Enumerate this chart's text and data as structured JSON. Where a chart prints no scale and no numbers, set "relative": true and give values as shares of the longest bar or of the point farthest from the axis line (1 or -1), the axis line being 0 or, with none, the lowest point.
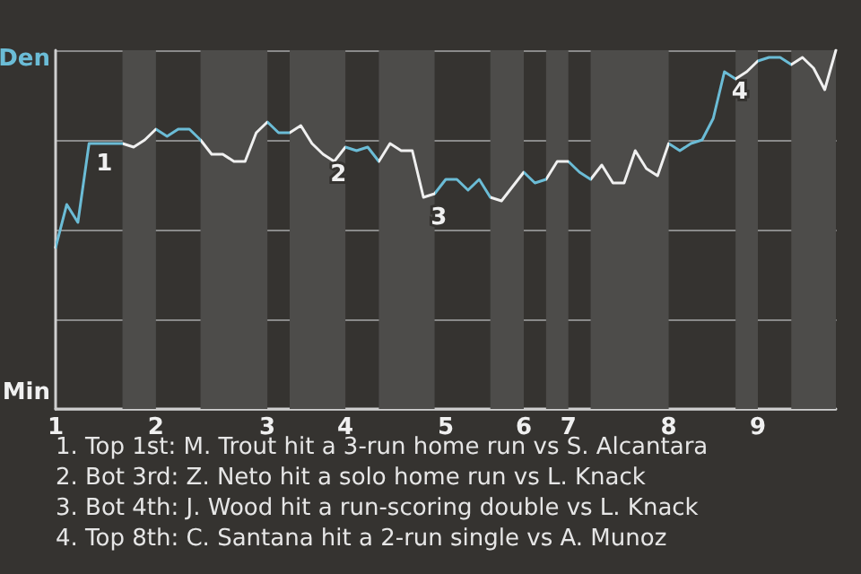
{
  "chart_data": {
    "type": "line",
    "relative": true,
    "categories": [
      "1",
      null,
      null,
      null,
      null,
      null,
      null,
      null,
      null,
      "2",
      null,
      null,
      null,
      null,
      null,
      null,
      null,
      null,
      null,
      "3",
      null,
      null,
      null,
      null,
      null,
      null,
      "4",
      null,
      null,
      null,
      null,
      null,
      null,
      null,
      null,
      "5",
      null,
      null,
      null,
      null,
      null,
      null,
      "6",
      null,
      null,
      null,
      "7",
      null,
      null,
      null,
      null,
      null,
      null,
      null,
      null,
      "8",
      null,
      null,
      null,
      null,
      null,
      null,
      null,
      "9",
      null,
      null,
      null,
      null,
      null,
      null,
      null
    ],
    "series": [
      {
        "color": "#f0f0f0",
        "values": [
          0.45,
          0.57,
          0.52,
          0.74,
          0.74,
          0.74,
          0.74,
          0.73,
          0.75,
          0.78,
          0.76,
          0.78,
          0.78,
          0.75,
          0.71,
          0.71,
          0.69,
          0.69,
          0.77,
          0.8,
          0.77,
          0.77,
          0.79,
          0.74,
          0.71,
          0.69,
          0.73,
          0.72,
          0.73,
          0.69,
          0.74,
          0.72,
          0.72,
          0.59,
          0.6,
          0.64,
          0.64,
          0.61,
          0.64,
          0.59,
          0.58,
          0.62,
          0.66,
          0.63,
          0.64,
          0.69,
          0.69,
          0.66,
          0.64,
          0.68,
          0.63,
          0.63,
          0.72,
          0.67,
          0.65,
          0.74,
          0.72,
          0.74,
          0.75,
          0.81,
          0.94,
          0.92,
          0.94,
          0.97,
          0.98,
          0.98,
          0.96,
          0.98,
          0.95,
          0.89,
          1.0
        ],
        "colors": [
          "#6bbcd6",
          "#6bbcd6",
          "#6bbcd6",
          "#6bbcd6",
          "#6bbcd6",
          "#6bbcd6",
          "#f0f0f0",
          "#f0f0f0",
          "#f0f0f0",
          "#6bbcd6",
          "#6bbcd6",
          "#6bbcd6",
          "#6bbcd6",
          "#f0f0f0",
          "#f0f0f0",
          "#f0f0f0",
          "#f0f0f0",
          "#f0f0f0",
          "#f0f0f0",
          "#6bbcd6",
          "#6bbcd6",
          "#f0f0f0",
          "#f0f0f0",
          "#f0f0f0",
          "#f0f0f0",
          "#f0f0f0",
          "#6bbcd6",
          "#6bbcd6",
          "#6bbcd6",
          "#f0f0f0",
          "#f0f0f0",
          "#f0f0f0",
          "#f0f0f0",
          "#f0f0f0",
          "#6bbcd6",
          "#6bbcd6",
          "#6bbcd6",
          "#6bbcd6",
          "#6bbcd6",
          "#f0f0f0",
          "#f0f0f0",
          "#f0f0f0",
          "#6bbcd6",
          "#6bbcd6",
          "#f0f0f0",
          "#f0f0f0",
          "#6bbcd6",
          "#6bbcd6",
          "#f0f0f0",
          "#f0f0f0",
          "#f0f0f0",
          "#f0f0f0",
          "#f0f0f0",
          "#f0f0f0",
          "#f0f0f0",
          "#6bbcd6",
          "#6bbcd6",
          "#6bbcd6",
          "#6bbcd6",
          "#6bbcd6",
          "#6bbcd6",
          "#f0f0f0",
          "#f0f0f0",
          "#6bbcd6",
          "#6bbcd6",
          "#6bbcd6",
          "#f0f0f0",
          "#f0f0f0",
          "#f0f0f0",
          "#f0f0f0",
          "#f0f0f0"
        ]
      }
    ],
    "grid": "y",
    "marker": "none",
    "line_style": "solid",
    "annotations": [
      "Den",
      "Min",
      "1. Top 1st: M. Trout hit a 3-run home run vs S. Alcantara",
      "2. Bot 3rd: Z. Neto hit a solo home run vs L. Knack",
      "3. Bot 4th: J. Wood hit a run-scoring double vs L. Knack",
      "4. Top 8th: C. Santana hit a 2-run single vs A. Munoz",
      {
        "text": "1",
        "y": 0.74
      },
      {
        "text": "2",
        "y": 0.71
      },
      {
        "text": "3",
        "y": 0.59
      },
      {
        "text": "4",
        "y": 0.94
      }
    ]
  }
}
